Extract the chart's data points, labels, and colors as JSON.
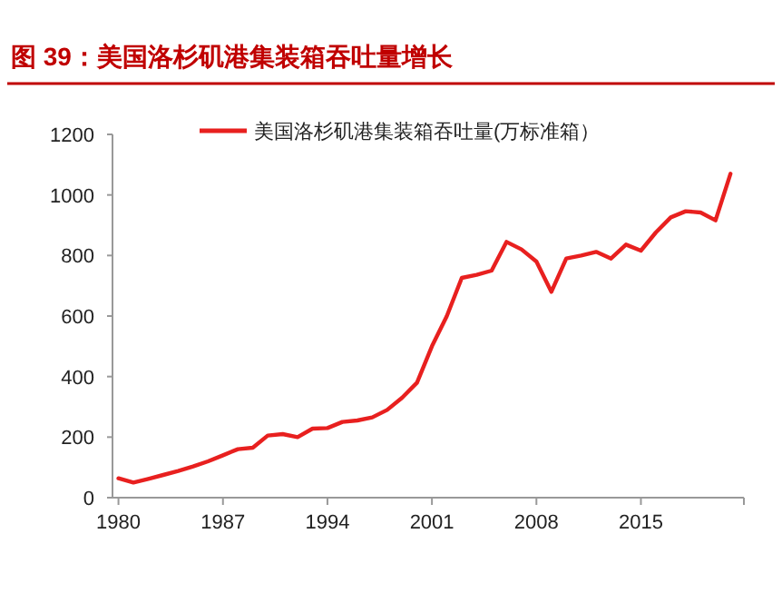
{
  "chart_data": {
    "type": "line",
    "title": "图 39：美国洛杉矶港集装箱吞吐量增长",
    "x": [
      1980,
      1981,
      1982,
      1983,
      1984,
      1985,
      1986,
      1987,
      1988,
      1989,
      1990,
      1991,
      1992,
      1993,
      1994,
      1995,
      1996,
      1997,
      1998,
      1999,
      2000,
      2001,
      2002,
      2003,
      2004,
      2005,
      2006,
      2007,
      2008,
      2009,
      2010,
      2011,
      2012,
      2013,
      2014,
      2015,
      2016,
      2017,
      2018,
      2019,
      2020,
      2021
    ],
    "series": [
      {
        "name": "美国洛杉矶港集装箱吞吐量(万标准箱）",
        "color": "#e8201f",
        "values": [
          64,
          50,
          62,
          75,
          88,
          103,
          120,
          140,
          160,
          165,
          205,
          210,
          200,
          228,
          230,
          250,
          255,
          265,
          290,
          330,
          380,
          500,
          600,
          726,
          736,
          750,
          845,
          820,
          780,
          680,
          790,
          800,
          812,
          790,
          836,
          816,
          876,
          926,
          946,
          942,
          916,
          1070
        ]
      }
    ],
    "xlim": [
      1979.6,
      2021.9
    ],
    "xticks": [
      1980,
      1987,
      1994,
      2001,
      2008,
      2015
    ],
    "ylim": [
      0,
      1200
    ],
    "yticks": [
      0,
      200,
      400,
      600,
      800,
      1000,
      1200
    ],
    "grid": false,
    "legend": "top",
    "marker": "none",
    "line_style": "solid"
  }
}
